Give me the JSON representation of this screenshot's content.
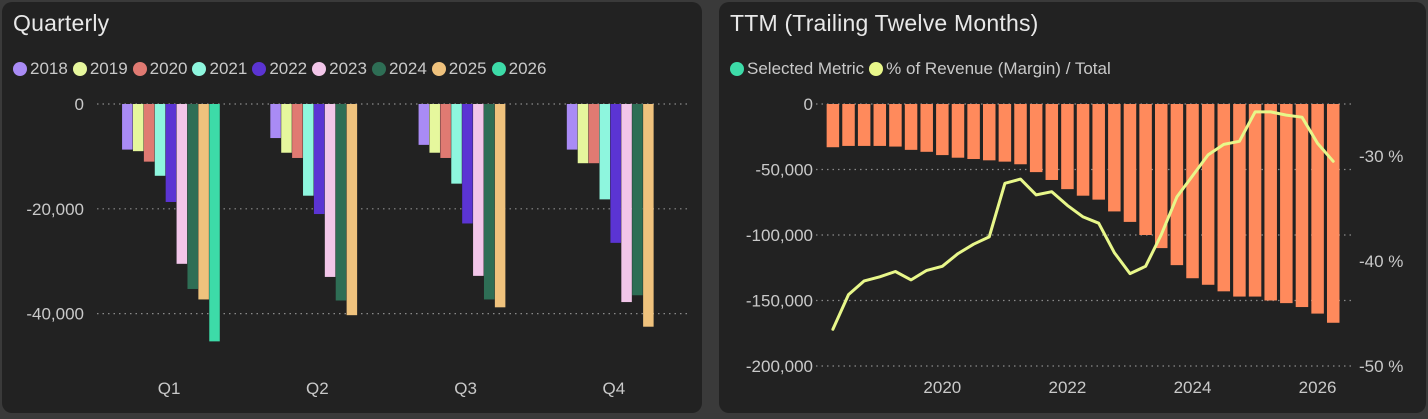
{
  "quarterly": {
    "title": "Quarterly",
    "chart_data": {
      "type": "bar",
      "title": "Quarterly",
      "categories": [
        "Q1",
        "Q2",
        "Q3",
        "Q4"
      ],
      "y_ticks": [
        0,
        -20000,
        -40000
      ],
      "y_tick_labels": [
        "0",
        "-20,000",
        "-40,000"
      ],
      "ylim": [
        -46000,
        0
      ],
      "grid": true,
      "legend_position": "top-left",
      "series": [
        {
          "name": "2018",
          "color": "#a98bf5",
          "values": [
            -8700,
            -6500,
            -7800,
            -8700
          ]
        },
        {
          "name": "2019",
          "color": "#e6f79d",
          "values": [
            -9000,
            -9300,
            -9300,
            -11300
          ]
        },
        {
          "name": "2020",
          "color": "#e07a72",
          "values": [
            -11000,
            -10300,
            -10300,
            -11300
          ]
        },
        {
          "name": "2021",
          "color": "#8ef6de",
          "values": [
            -13700,
            -17500,
            -15200,
            -18200
          ]
        },
        {
          "name": "2022",
          "color": "#5b34d3",
          "values": [
            -18700,
            -21000,
            -22800,
            -26500
          ]
        },
        {
          "name": "2023",
          "color": "#f2c6e9",
          "values": [
            -30500,
            -33000,
            -32800,
            -37800
          ]
        },
        {
          "name": "2024",
          "color": "#2e6e55",
          "values": [
            -35300,
            -37500,
            -37300,
            -36500
          ]
        },
        {
          "name": "2025",
          "color": "#efc27d",
          "values": [
            -37300,
            -40300,
            -38800,
            -42500
          ]
        },
        {
          "name": "2026",
          "color": "#3ddba8",
          "values": [
            -45300,
            null,
            null,
            null
          ]
        }
      ]
    }
  },
  "ttm": {
    "title": "TTM (Trailing Twelve Months)",
    "chart_data": {
      "type": "bar",
      "title": "TTM (Trailing Twelve Months)",
      "legend_position": "top-left",
      "grid": true,
      "x": [
        2018.25,
        2018.5,
        2018.75,
        2019.0,
        2019.25,
        2019.5,
        2019.75,
        2020.0,
        2020.25,
        2020.5,
        2020.75,
        2021.0,
        2021.25,
        2021.5,
        2021.75,
        2022.0,
        2022.25,
        2022.5,
        2022.75,
        2023.0,
        2023.25,
        2023.5,
        2023.75,
        2024.0,
        2024.25,
        2024.5,
        2024.75,
        2025.0,
        2025.25,
        2025.5,
        2025.75,
        2026.0,
        2026.25
      ],
      "x_ticks": [
        2020,
        2022,
        2024,
        2026
      ],
      "x_tick_labels": [
        "2020",
        "2022",
        "2024",
        "2026"
      ],
      "xlim": [
        2017.98,
        2026.55
      ],
      "y_ticks": [
        0,
        -50000,
        -100000,
        -150000,
        -200000
      ],
      "y_tick_labels": [
        "0",
        "-50,000",
        "-100,000",
        "-150,000",
        "-200,000"
      ],
      "ylim": [
        -200000,
        0
      ],
      "y2_ticks": [
        -30,
        -40,
        -50
      ],
      "y2_tick_labels": [
        "-30 %",
        "-40 %",
        "-50 %"
      ],
      "y2lim": [
        -50,
        -24
      ],
      "series": [
        {
          "name": "Selected Metric",
          "type": "bar",
          "color": "#ff8a5c",
          "legend_color": "#3ddba8",
          "values": [
            -33000,
            -32000,
            -32000,
            -32000,
            -32500,
            -35000,
            -36500,
            -39000,
            -41000,
            -42000,
            -43000,
            -44000,
            -46000,
            -52000,
            -58000,
            -65000,
            -70000,
            -73000,
            -82000,
            -90000,
            -100000,
            -110000,
            -123000,
            -133000,
            -138000,
            -143000,
            -147000,
            -147000,
            -150000,
            -152000,
            -155000,
            -160000,
            -167000
          ]
        },
        {
          "name": "% of Revenue (Margin) / Total",
          "type": "line",
          "color": "#e8f78a",
          "values": [
            -46.5,
            -43.2,
            -41.9,
            -41.5,
            -41.0,
            -41.8,
            -40.9,
            -40.5,
            -39.3,
            -38.4,
            -37.7,
            -32.6,
            -32.2,
            -33.7,
            -33.4,
            -34.7,
            -35.8,
            -36.4,
            -39.2,
            -41.2,
            -40.5,
            -37.5,
            -33.9,
            -31.9,
            -29.9,
            -28.9,
            -28.6,
            -25.8,
            -25.8,
            -26.1,
            -26.3,
            -28.8,
            -30.5
          ]
        }
      ]
    }
  }
}
